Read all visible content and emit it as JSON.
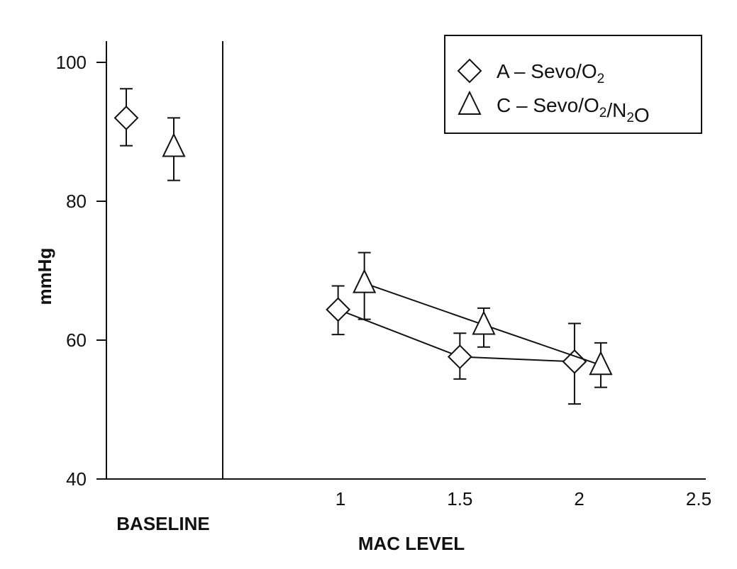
{
  "chart_data": {
    "type": "scatter",
    "ylabel": "mmHg",
    "xlabel": "MAC LEVEL",
    "baseline_label": "BASELINE",
    "ylim": [
      40,
      100
    ],
    "yticks": [
      40,
      60,
      80,
      100
    ],
    "xlim": [
      0.5,
      2.5
    ],
    "xticks": [
      "1",
      "1.5",
      "2",
      "2.5"
    ],
    "legend_position": "top-right",
    "series": [
      {
        "name": "A – Sevo/O2",
        "name_parts": {
          "prefix": "A – Sevo/O",
          "sub": "2",
          "suffix": ""
        },
        "marker": "diamond",
        "baseline": {
          "y": 92,
          "err_low": 88,
          "err_high": 96.2
        },
        "points": [
          {
            "x": 0.99,
            "y": 64.4,
            "err_low": 60.8,
            "err_high": 67.8
          },
          {
            "x": 1.5,
            "y": 57.6,
            "err_low": 54.4,
            "err_high": 61
          },
          {
            "x": 1.98,
            "y": 56.9,
            "err_low": 50.8,
            "err_high": 62.4
          }
        ]
      },
      {
        "name": "C – Sevo/O2/N2O",
        "name_parts": {
          "prefix": "C – Sevo/O",
          "sub": "2",
          "mid": "/N",
          "sub2": "2",
          "suffix": "O"
        },
        "marker": "triangle",
        "baseline": {
          "y": 87.8,
          "err_low": 83,
          "err_high": 92
        },
        "points": [
          {
            "x": 1.1,
            "y": 68.2,
            "err_low": 63,
            "err_high": 72.6
          },
          {
            "x": 1.6,
            "y": 62.2,
            "err_low": 59,
            "err_high": 64.6
          },
          {
            "x": 2.09,
            "y": 56.4,
            "err_low": 53.2,
            "err_high": 59.6
          }
        ]
      }
    ]
  }
}
